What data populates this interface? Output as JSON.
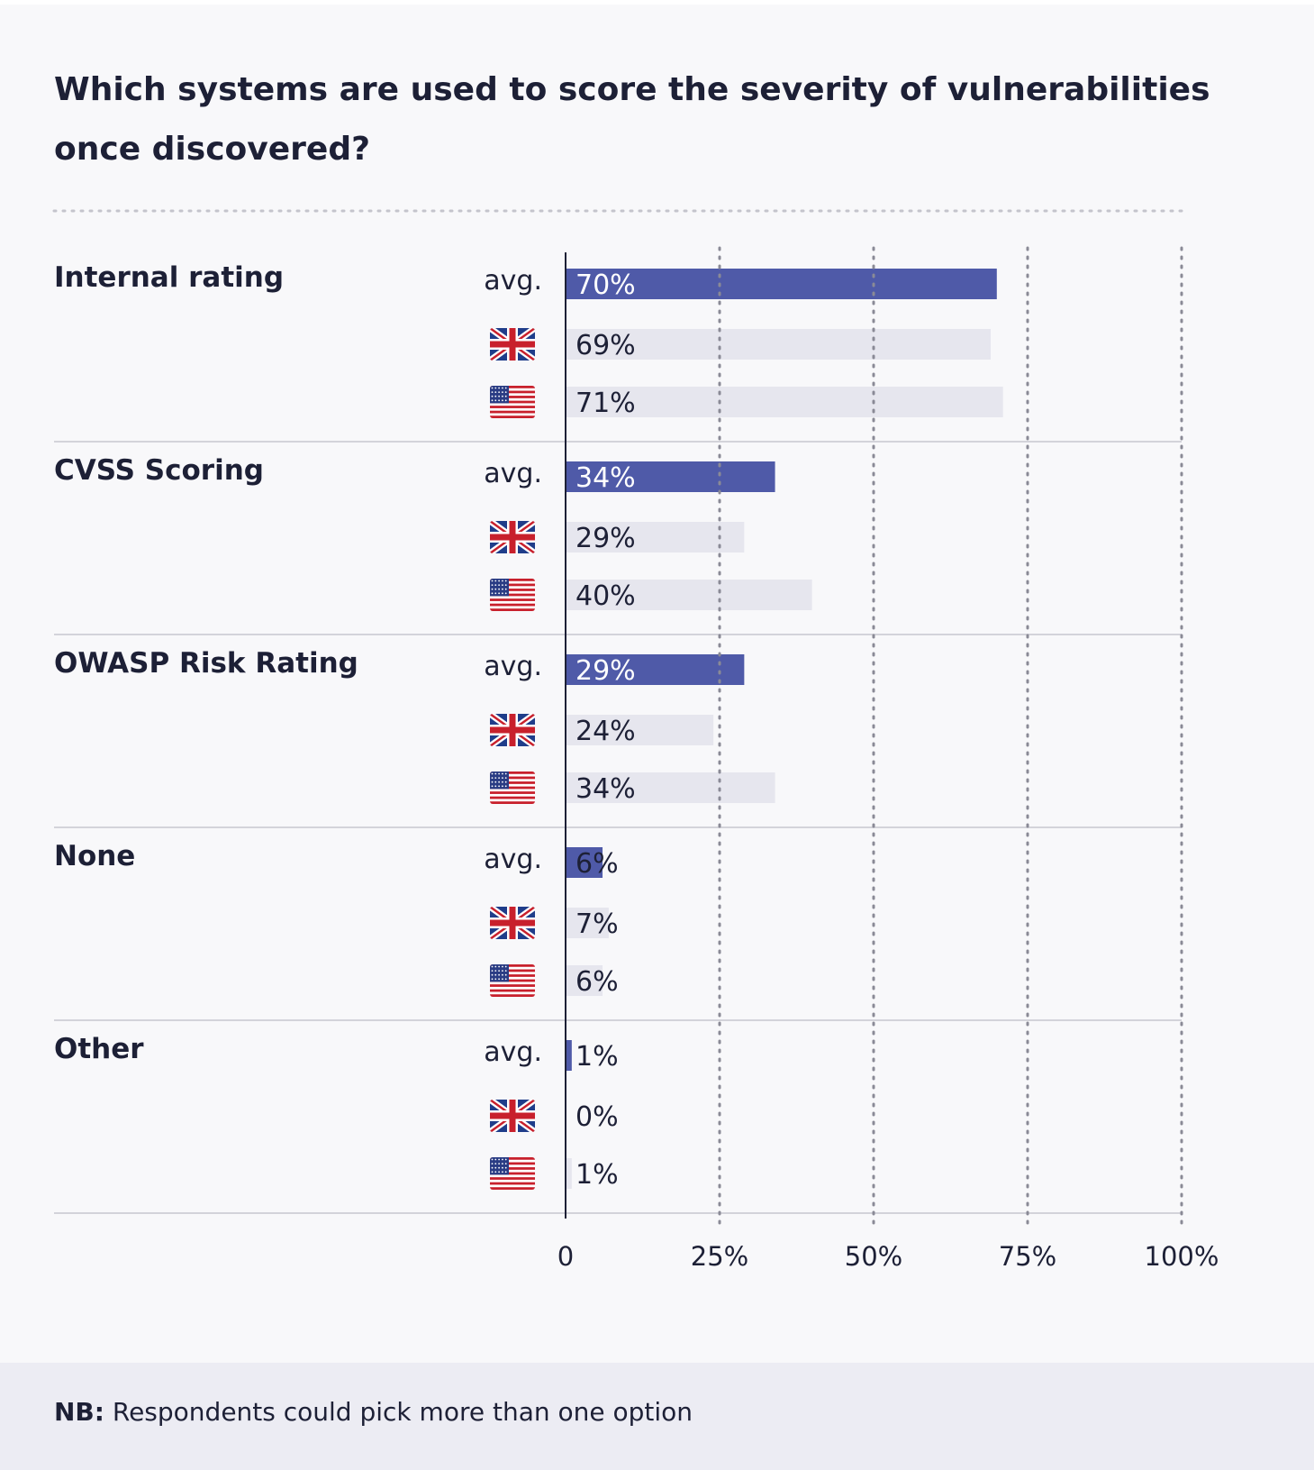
{
  "title": "Which systems are used to score the severity of vulnerabilities once discovered?",
  "footnote": {
    "prefix": "NB:",
    "text": " Respondents could pick more than one option"
  },
  "colors": {
    "avg_bar": "#4f5aa8",
    "country_bar": "#e6e6ee",
    "gridline": "#8a8a96",
    "separator": "#d3d3da"
  },
  "row_labels": {
    "avg": "avg.",
    "uk": "uk-flag-icon",
    "us": "us-flag-icon"
  },
  "chart_data": {
    "type": "bar",
    "orientation": "horizontal",
    "title": "Which systems are used to score the severity of vulnerabilities once discovered?",
    "categories": [
      "Internal rating",
      "CVSS Scoring",
      "OWASP Risk Rating",
      "None",
      "Other"
    ],
    "series": [
      {
        "name": "avg.",
        "values": [
          70,
          34,
          29,
          6,
          1
        ],
        "labels": [
          "70%",
          "34%",
          "29%",
          "6%",
          "1%"
        ]
      },
      {
        "name": "UK",
        "values": [
          69,
          29,
          24,
          7,
          0
        ],
        "labels": [
          "69%",
          "29%",
          "24%",
          "7%",
          "0%"
        ]
      },
      {
        "name": "US",
        "values": [
          71,
          40,
          34,
          6,
          1
        ],
        "labels": [
          "71%",
          "40%",
          "34%",
          "6%",
          "1%"
        ]
      }
    ],
    "xlim": [
      0,
      100
    ],
    "xticks": [
      0,
      25,
      50,
      75,
      100
    ],
    "xtick_labels": [
      "0",
      "25%",
      "50%",
      "75%",
      "100%"
    ],
    "grid": "vertical dotted"
  }
}
